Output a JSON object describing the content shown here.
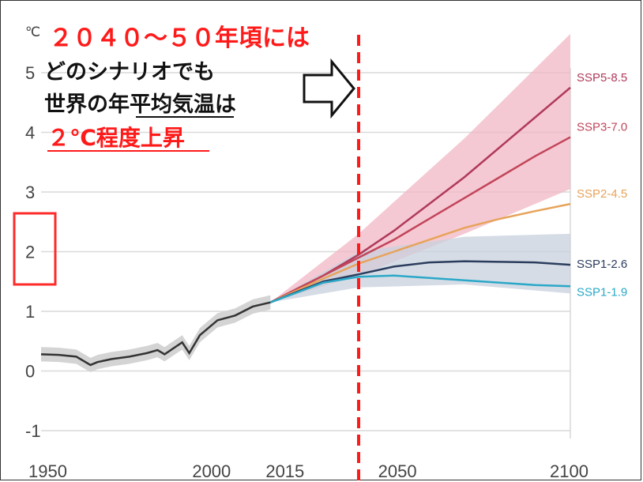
{
  "chart_data": {
    "type": "line",
    "title": "",
    "xlabel": "",
    "ylabel": "",
    "y_unit": "℃",
    "xlim": [
      1950,
      2100
    ],
    "ylim": [
      -1,
      5
    ],
    "y_ticks": [
      -1,
      0,
      1,
      2,
      3,
      4,
      5
    ],
    "x_ticks": [
      1950,
      2000,
      2015,
      2050,
      2100
    ],
    "grid": true,
    "historical": {
      "x": [
        1950,
        1955,
        1960,
        1964,
        1966,
        1970,
        1975,
        1980,
        1983,
        1985,
        1990,
        1992,
        1995,
        2000,
        2005,
        2010,
        2015
      ],
      "y": [
        0.28,
        0.27,
        0.24,
        0.1,
        0.15,
        0.2,
        0.24,
        0.3,
        0.35,
        0.28,
        0.48,
        0.3,
        0.6,
        0.85,
        0.93,
        1.08,
        1.15
      ],
      "band_width": 0.12
    },
    "series": [
      {
        "name": "SSP5-8.5",
        "color": "#b03a5b",
        "x": [
          2015,
          2030,
          2040,
          2050,
          2060,
          2070,
          2080,
          2090,
          2100
        ],
        "y": [
          1.15,
          1.6,
          1.95,
          2.35,
          2.8,
          3.25,
          3.75,
          4.25,
          4.75
        ]
      },
      {
        "name": "SSP3-7.0",
        "color": "#c2455a",
        "x": [
          2015,
          2030,
          2040,
          2050,
          2060,
          2070,
          2080,
          2090,
          2100
        ],
        "y": [
          1.15,
          1.6,
          1.9,
          2.2,
          2.55,
          2.9,
          3.25,
          3.6,
          3.92
        ]
      },
      {
        "name": "SSP2-4.5",
        "color": "#e7a35b",
        "x": [
          2015,
          2030,
          2040,
          2050,
          2060,
          2070,
          2080,
          2090,
          2100
        ],
        "y": [
          1.15,
          1.55,
          1.8,
          2.0,
          2.2,
          2.4,
          2.55,
          2.68,
          2.8
        ]
      },
      {
        "name": "SSP1-2.6",
        "color": "#2b3d5e",
        "x": [
          2015,
          2030,
          2040,
          2050,
          2060,
          2070,
          2080,
          2090,
          2100
        ],
        "y": [
          1.15,
          1.5,
          1.62,
          1.75,
          1.82,
          1.84,
          1.83,
          1.82,
          1.78
        ]
      },
      {
        "name": "SSP1-1.9",
        "color": "#2aa8c8",
        "x": [
          2015,
          2030,
          2040,
          2050,
          2060,
          2070,
          2080,
          2090,
          2100
        ],
        "y": [
          1.15,
          1.48,
          1.58,
          1.6,
          1.56,
          1.52,
          1.48,
          1.44,
          1.42
        ]
      }
    ],
    "bands": [
      {
        "name": "SSP5-8.5 range",
        "color": "#f2b7c4",
        "x": [
          2015,
          2040,
          2070,
          2100
        ],
        "upper": [
          1.15,
          2.3,
          3.9,
          5.65
        ],
        "lower": [
          1.15,
          1.6,
          2.3,
          3.05
        ]
      },
      {
        "name": "SSP1-2.6 range",
        "color": "#c8d0dc",
        "x": [
          2015,
          2040,
          2070,
          2100
        ],
        "upper": [
          1.15,
          2.0,
          2.25,
          2.3
        ],
        "lower": [
          1.15,
          1.4,
          1.45,
          1.3
        ]
      }
    ],
    "marker_year": 2040,
    "highlight_y": 2
  },
  "annotation": {
    "line1": "２０４０～５０年頃には",
    "line2": "どのシナリオでも",
    "line3": "世界の年平均気温は",
    "line4": "２℃程度上昇",
    "highlight_color": "#ff1a1a"
  }
}
